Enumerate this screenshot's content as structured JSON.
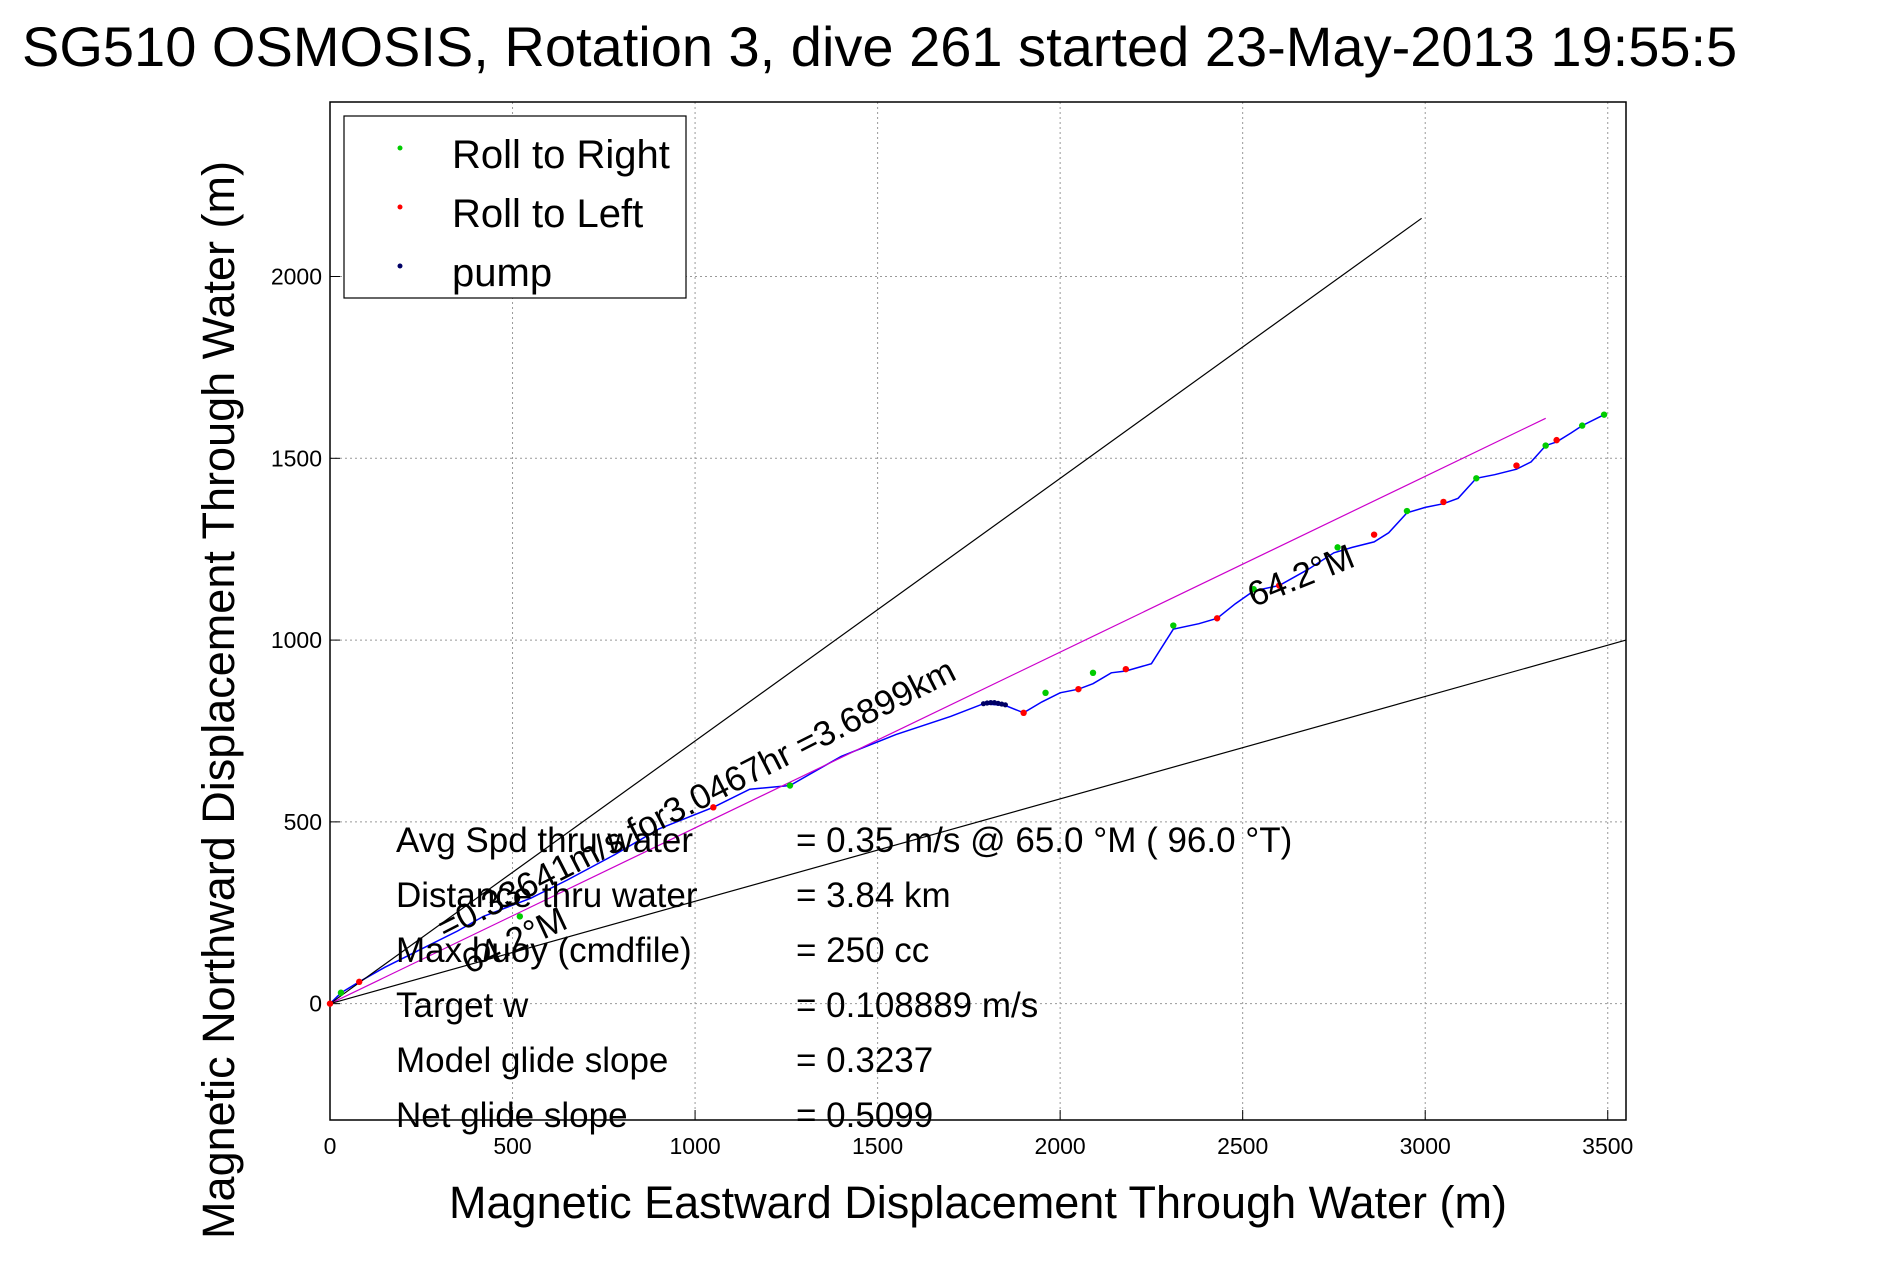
{
  "chart_data": {
    "type": "line",
    "title": "SG510 OSMOSIS, Rotation 3, dive 261 started 23-May-2013 19:55:5",
    "xlabel": "Magnetic Eastward Displacement Through Water (m)",
    "ylabel": "Magnetic Northward Displacement Through Water (m)",
    "xlim": [
      0,
      3550
    ],
    "ylim": [
      -320,
      2480
    ],
    "xticks": [
      0,
      500,
      1000,
      1500,
      2000,
      2500,
      3000,
      3500
    ],
    "yticks": [
      0,
      500,
      1000,
      1500,
      2000
    ],
    "grid": true,
    "legend": {
      "position": "top-left",
      "entries": [
        {
          "label": "Roll to Right",
          "color": "#00cc00"
        },
        {
          "label": "Roll to Left",
          "color": "#ff0000"
        },
        {
          "label": "pump",
          "color": "#000066"
        }
      ]
    },
    "series": [
      {
        "type": "line",
        "color": "#0000ff",
        "x": [
          0,
          30,
          80,
          150,
          250,
          350,
          420,
          550,
          650,
          780,
          900,
          1050,
          1150,
          1260,
          1400,
          1550,
          1700,
          1790,
          1850,
          1900,
          1950,
          2000,
          2050,
          2090,
          2140,
          2180,
          2250,
          2310,
          2380,
          2430,
          2480,
          2530,
          2600,
          2680,
          2750,
          2800,
          2860,
          2900,
          2950,
          3000,
          3050,
          3090,
          3140,
          3190,
          3250,
          3290,
          3330,
          3360,
          3400,
          3430,
          3490
        ],
        "y": [
          0,
          30,
          60,
          100,
          150,
          200,
          240,
          290,
          340,
          410,
          480,
          540,
          590,
          600,
          680,
          740,
          790,
          825,
          820,
          800,
          830,
          855,
          865,
          880,
          910,
          915,
          935,
          1030,
          1045,
          1060,
          1100,
          1135,
          1150,
          1195,
          1240,
          1255,
          1270,
          1295,
          1350,
          1365,
          1375,
          1390,
          1445,
          1455,
          1470,
          1490,
          1535,
          1545,
          1570,
          1590,
          1620
        ]
      },
      {
        "type": "line",
        "color": "#cc00cc",
        "x": [
          0,
          3330
        ],
        "y": [
          0,
          1610
        ]
      },
      {
        "type": "line",
        "color": "#000000",
        "x": [
          0,
          2990
        ],
        "y": [
          0,
          2160
        ]
      },
      {
        "type": "line",
        "color": "#000000",
        "x": [
          0,
          3550
        ],
        "y": [
          0,
          1000
        ]
      }
    ],
    "markers": {
      "roll_right": {
        "color": "#00cc00",
        "x": [
          30,
          520,
          1260,
          1960,
          2090,
          2310,
          2530,
          2760,
          2950,
          3140,
          3330,
          3430,
          3490
        ],
        "y": [
          30,
          240,
          600,
          855,
          910,
          1040,
          1140,
          1255,
          1355,
          1445,
          1535,
          1590,
          1620
        ]
      },
      "roll_left": {
        "color": "#ff0000",
        "x": [
          0,
          80,
          1050,
          1900,
          2050,
          2180,
          2430,
          2600,
          2860,
          3050,
          3250,
          3360
        ],
        "y": [
          0,
          60,
          540,
          800,
          865,
          920,
          1060,
          1150,
          1290,
          1380,
          1480,
          1550
        ]
      },
      "pump": {
        "color": "#000066",
        "x": [
          1790,
          1800,
          1810,
          1820,
          1830,
          1840,
          1850
        ],
        "y": [
          825,
          827,
          828,
          828,
          826,
          824,
          822
        ]
      }
    },
    "annotations": [
      {
        "text": "64.2°M",
        "x": 2530,
        "y": 1090,
        "rotate": -22
      },
      {
        "text": "64.2°M",
        "x": 380,
        "y": 80,
        "rotate": -25
      },
      {
        "text": "=0.33641m/s for3.0467hr =3.6899km",
        "x": 315,
        "y": 175,
        "rotate": -27
      }
    ],
    "stats": [
      {
        "label": "Avg Spd thru water",
        "value": "=  0.35 m/s @  65.0 °M ( 96.0 °T)"
      },
      {
        "label": "Distance thru water",
        "value": "=  3.84 km"
      },
      {
        "label": "Max buoy (cmdfile)",
        "value": "= 250 cc"
      },
      {
        "label": "Target w",
        "value": "= 0.108889 m/s"
      },
      {
        "label": "Model glide slope",
        "value": "= 0.3237"
      },
      {
        "label": "Net glide slope",
        "value": "= 0.5099"
      }
    ]
  }
}
